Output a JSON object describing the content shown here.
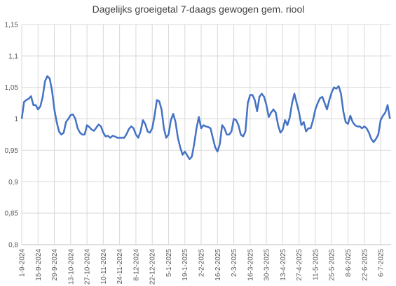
{
  "chart_data": {
    "type": "line",
    "title": "Dagelijks groeigetal 7-daags gewogen gem. riool",
    "x": [
      "1-9-2024",
      "3-9-2024",
      "5-9-2024",
      "7-9-2024",
      "9-9-2024",
      "11-9-2024",
      "13-9-2024",
      "15-9-2024",
      "17-9-2024",
      "19-9-2024",
      "21-9-2024",
      "23-9-2024",
      "25-9-2024",
      "27-9-2024",
      "29-9-2024",
      "1-10-2024",
      "3-10-2024",
      "5-10-2024",
      "7-10-2024",
      "9-10-2024",
      "11-10-2024",
      "13-10-2024",
      "15-10-2024",
      "17-10-2024",
      "19-10-2024",
      "21-10-2024",
      "23-10-2024",
      "25-10-2024",
      "27-10-2024",
      "29-10-2024",
      "31-10-2024",
      "2-11-2024",
      "4-11-2024",
      "6-11-2024",
      "8-11-2024",
      "10-11-2024",
      "12-11-2024",
      "14-11-2024",
      "16-11-2024",
      "18-11-2024",
      "20-11-2024",
      "22-11-2024",
      "24-11-2024",
      "26-11-2024",
      "28-11-2024",
      "30-11-2024",
      "2-12-2024",
      "4-12-2024",
      "6-12-2024",
      "8-12-2024",
      "10-12-2024",
      "12-12-2024",
      "14-12-2024",
      "16-12-2024",
      "18-12-2024",
      "20-12-2024",
      "22-12-2024",
      "24-12-2024",
      "26-12-2024",
      "28-12-2024",
      "30-12-2024",
      "1-1-2025",
      "3-1-2025",
      "5-1-2025",
      "7-1-2025",
      "9-1-2025",
      "11-1-2025",
      "13-1-2025",
      "15-1-2025",
      "17-1-2025",
      "19-1-2025",
      "21-1-2025",
      "23-1-2025",
      "25-1-2025",
      "27-1-2025",
      "29-1-2025",
      "31-1-2025",
      "2-2-2025",
      "4-2-2025",
      "6-2-2025",
      "8-2-2025",
      "10-2-2025",
      "12-2-2025",
      "14-2-2025",
      "16-2-2025",
      "18-2-2025",
      "20-2-2025",
      "22-2-2025",
      "24-2-2025",
      "26-2-2025",
      "28-2-2025",
      "2-3-2025",
      "4-3-2025",
      "6-3-2025",
      "8-3-2025",
      "10-3-2025",
      "12-3-2025",
      "14-3-2025",
      "16-3-2025",
      "18-3-2025",
      "20-3-2025",
      "22-3-2025",
      "24-3-2025",
      "26-3-2025",
      "28-3-2025",
      "30-3-2025",
      "1-4-2025",
      "3-4-2025",
      "5-4-2025",
      "7-4-2025",
      "9-4-2025",
      "11-4-2025",
      "13-4-2025",
      "15-4-2025",
      "17-4-2025",
      "19-4-2025",
      "21-4-2025",
      "23-4-2025",
      "25-4-2025",
      "27-4-2025",
      "29-4-2025",
      "1-5-2025",
      "3-5-2025",
      "5-5-2025",
      "7-5-2025",
      "9-5-2025",
      "11-5-2025",
      "13-5-2025",
      "15-5-2025",
      "17-5-2025",
      "19-5-2025",
      "21-5-2025",
      "23-5-2025",
      "25-5-2025",
      "27-5-2025",
      "29-5-2025",
      "31-5-2025",
      "2-6-2025",
      "4-6-2025",
      "6-6-2025",
      "8-6-2025",
      "10-6-2025",
      "12-6-2025",
      "14-6-2025",
      "16-6-2025",
      "18-6-2025",
      "20-6-2025",
      "22-6-2025",
      "24-6-2025",
      "26-6-2025",
      "28-6-2025",
      "30-6-2025",
      "2-7-2025",
      "4-7-2025",
      "6-7-2025",
      "8-7-2025",
      "10-7-2025",
      "12-7-2025",
      "14-7-2025"
    ],
    "series": [
      {
        "name": "Dagelijks groeigetal",
        "color": "#4472c4",
        "values": [
          1.0,
          1.027,
          1.03,
          1.032,
          1.036,
          1.022,
          1.022,
          1.015,
          1.02,
          1.035,
          1.06,
          1.068,
          1.064,
          1.045,
          1.015,
          0.995,
          0.98,
          0.975,
          0.978,
          0.995,
          1.0,
          1.006,
          1.007,
          1.0,
          0.985,
          0.978,
          0.975,
          0.975,
          0.99,
          0.987,
          0.983,
          0.981,
          0.986,
          0.991,
          0.988,
          0.978,
          0.972,
          0.973,
          0.97,
          0.973,
          0.972,
          0.97,
          0.97,
          0.97,
          0.97,
          0.976,
          0.984,
          0.988,
          0.985,
          0.975,
          0.97,
          0.98,
          0.998,
          0.992,
          0.98,
          0.978,
          0.985,
          1.005,
          1.03,
          1.028,
          1.015,
          0.985,
          0.97,
          0.975,
          0.998,
          1.008,
          0.995,
          0.97,
          0.955,
          0.943,
          0.948,
          0.942,
          0.936,
          0.94,
          0.96,
          0.985,
          1.003,
          0.985,
          0.99,
          0.988,
          0.987,
          0.985,
          0.97,
          0.955,
          0.948,
          0.96,
          0.99,
          0.985,
          0.975,
          0.975,
          0.98,
          1.0,
          0.998,
          0.99,
          0.975,
          0.972,
          0.98,
          1.025,
          1.038,
          1.038,
          1.03,
          1.012,
          1.035,
          1.04,
          1.035,
          1.022,
          1.003,
          1.01,
          1.015,
          1.01,
          0.99,
          0.978,
          0.983,
          0.998,
          0.99,
          1.002,
          1.025,
          1.04,
          1.025,
          1.01,
          0.99,
          0.995,
          0.98,
          0.985,
          0.985,
          0.998,
          1.015,
          1.025,
          1.033,
          1.035,
          1.025,
          1.015,
          1.03,
          1.042,
          1.05,
          1.048,
          1.052,
          1.04,
          1.012,
          0.995,
          0.992,
          1.005,
          0.995,
          0.99,
          0.988,
          0.988,
          0.985,
          0.988,
          0.985,
          0.978,
          0.968,
          0.963,
          0.968,
          0.975,
          0.998,
          1.005,
          1.01,
          1.022,
          1.0
        ]
      }
    ],
    "xlim": [
      "1-9-2024",
      "15-7-2025"
    ],
    "xticks": [
      "1-9-2024",
      "15-9-2024",
      "29-9-2024",
      "13-10-2024",
      "27-10-2024",
      "10-11-2024",
      "24-11-2024",
      "8-12-2024",
      "22-12-2024",
      "5-1-2025",
      "19-1-2025",
      "2-2-2025",
      "16-2-2025",
      "2-3-2025",
      "16-3-2025",
      "30-3-2025",
      "13-4-2025",
      "27-4-2025",
      "11-5-2025",
      "25-5-2025",
      "8-6-2025",
      "22-6-2025",
      "6-7-2025"
    ],
    "ylim": [
      0.8,
      1.15
    ],
    "yticks": [
      {
        "value": 0.8,
        "label": "0,8"
      },
      {
        "value": 0.85,
        "label": "0,85"
      },
      {
        "value": 0.9,
        "label": "0,9"
      },
      {
        "value": 0.95,
        "label": "0,95"
      },
      1,
      {
        "value": 1.05,
        "label": "1,05"
      },
      {
        "value": 1.1,
        "label": "1,1"
      },
      {
        "value": 1.15,
        "label": "1,15"
      }
    ],
    "grid": true
  }
}
